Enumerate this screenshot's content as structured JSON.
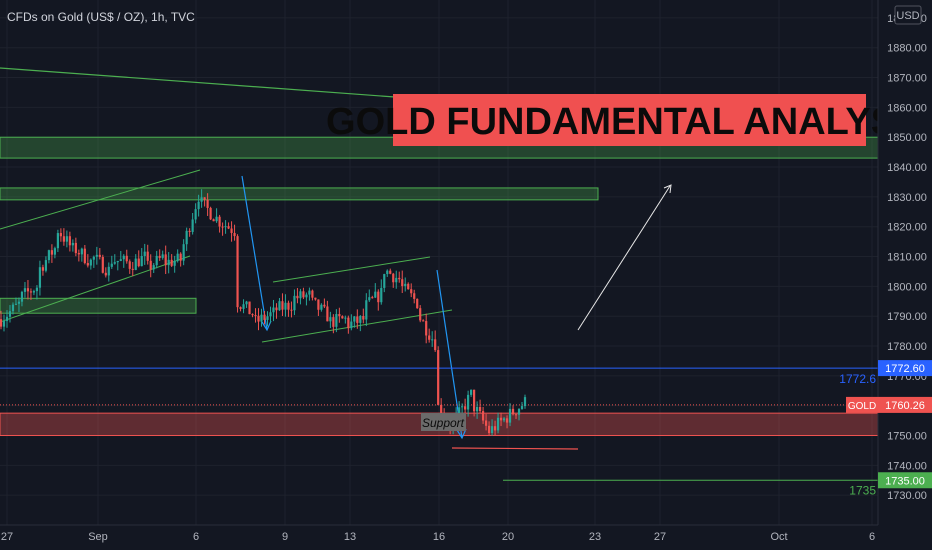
{
  "legend": "CFDs on Gold (US$ / OZ), 1h, TVC",
  "banner": {
    "text": "GOLD FUNDAMENTAL ANALYSIS",
    "bg": "#f05050"
  },
  "currency": "USD",
  "colors": {
    "up": "#26a69a",
    "down": "#ef5350",
    "zone_green": "#4caf50",
    "zone_red": "#ef5350",
    "blue_line": "#2962ff",
    "green_line": "#4caf50"
  },
  "chart_data": {
    "type": "candlestick",
    "ylim": [
      1720,
      1896
    ],
    "y_ticks": [
      1730,
      1740,
      1750,
      1760,
      1770,
      1780,
      1790,
      1800,
      1810,
      1820,
      1830,
      1840,
      1850,
      1860,
      1870,
      1880,
      1890
    ],
    "x_ticks": [
      "27",
      "Sep",
      "6",
      "9",
      "13",
      "16",
      "20",
      "23",
      "27",
      "Oct",
      "6"
    ],
    "current_price": {
      "label": "GOLD",
      "value": "1760.26"
    },
    "levels": [
      {
        "value": 1772.6,
        "label": "1772.60",
        "side_label": "1772.6",
        "color": "#2962ff"
      },
      {
        "value": 1735.0,
        "label": "1735.00",
        "side_label": "1735",
        "color": "#4caf50"
      }
    ],
    "zones": [
      {
        "low": 1843,
        "high": 1850,
        "color": "#4caf50"
      },
      {
        "low": 1829,
        "high": 1833,
        "color": "#4caf50"
      },
      {
        "low": 1791,
        "high": 1796,
        "color": "#4caf50"
      },
      {
        "low": 1750,
        "high": 1757.5,
        "color": "#ef5350",
        "label": "Support"
      }
    ],
    "price_path": [
      [
        1789,
        1794
      ],
      [
        1796,
        1800
      ],
      [
        1805,
        1813
      ],
      [
        1820,
        1812
      ],
      [
        1813,
        1808
      ],
      [
        1810,
        1805
      ],
      [
        1809,
        1808
      ],
      [
        1807,
        1810
      ],
      [
        1806,
        1810
      ],
      [
        1808,
        1809
      ],
      [
        1813,
        1833
      ],
      [
        1828,
        1822
      ],
      [
        1822,
        1818
      ],
      [
        1795,
        1790
      ],
      [
        1788,
        1791
      ],
      [
        1792,
        1794
      ],
      [
        1796,
        1797
      ],
      [
        1795,
        1790
      ],
      [
        1788,
        1789
      ],
      [
        1787,
        1789
      ],
      [
        1793,
        1798
      ],
      [
        1806,
        1802
      ],
      [
        1800,
        1794
      ],
      [
        1790,
        1780
      ],
      [
        1760,
        1752
      ],
      [
        1755,
        1765
      ],
      [
        1760,
        1750
      ],
      [
        1752,
        1757
      ],
      [
        1757,
        1762
      ]
    ]
  }
}
